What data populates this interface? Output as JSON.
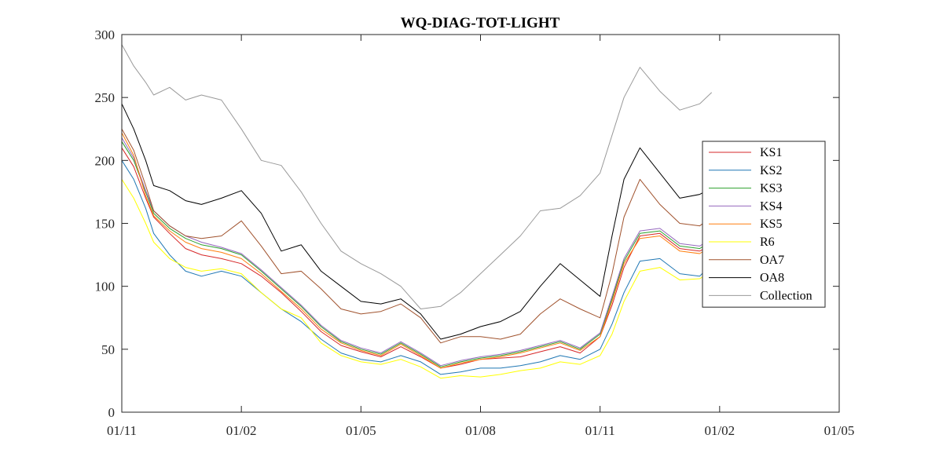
{
  "chart_data": {
    "type": "line",
    "title": "WQ-DIAG-TOT-LIGHT",
    "xlabel": "",
    "ylabel": "",
    "x_tick_labels": [
      "01/11",
      "01/02",
      "01/05",
      "01/08",
      "01/11",
      "01/02",
      "01/05"
    ],
    "x_ticks": [
      0,
      3,
      6,
      9,
      12,
      15,
      18
    ],
    "x_unit": "months since first tick (01/11)",
    "xlim": [
      0,
      18
    ],
    "ylim": [
      0,
      300
    ],
    "y_ticks": [
      0,
      50,
      100,
      150,
      200,
      250,
      300
    ],
    "grid": false,
    "legend_position": "right",
    "series": [
      {
        "name": "KS1",
        "color": "#d62728",
        "x": [
          0,
          0.3,
          0.6,
          0.8,
          1.2,
          1.6,
          2,
          2.5,
          3,
          3.5,
          4,
          4.5,
          5,
          5.5,
          6,
          6.5,
          7,
          7.5,
          8,
          8.5,
          9,
          9.5,
          10,
          10.5,
          11,
          11.5,
          12,
          12.3,
          12.6,
          13,
          13.5,
          14,
          14.5,
          14.8
        ],
        "y": [
          210,
          195,
          170,
          155,
          142,
          130,
          125,
          122,
          118,
          108,
          95,
          80,
          64,
          53,
          48,
          44,
          52,
          44,
          35,
          38,
          42,
          43,
          44,
          48,
          52,
          47,
          60,
          85,
          115,
          140,
          142,
          130,
          128,
          133
        ]
      },
      {
        "name": "KS2",
        "color": "#1f77b4",
        "x": [
          0,
          0.3,
          0.6,
          0.8,
          1.2,
          1.6,
          2,
          2.5,
          3,
          3.5,
          4,
          4.5,
          5,
          5.5,
          6,
          6.5,
          7,
          7.5,
          8,
          8.5,
          9,
          9.5,
          10,
          10.5,
          11,
          11.5,
          12,
          12.3,
          12.6,
          13,
          13.5,
          14,
          14.5,
          14.8
        ],
        "y": [
          200,
          185,
          162,
          142,
          125,
          112,
          108,
          112,
          108,
          95,
          82,
          72,
          58,
          47,
          42,
          40,
          45,
          40,
          30,
          32,
          35,
          35,
          37,
          40,
          45,
          42,
          50,
          70,
          95,
          120,
          122,
          110,
          108,
          118
        ]
      },
      {
        "name": "KS3",
        "color": "#2ca02c",
        "x": [
          0,
          0.3,
          0.6,
          0.8,
          1.2,
          1.6,
          2,
          2.5,
          3,
          3.5,
          4,
          4.5,
          5,
          5.5,
          6,
          6.5,
          7,
          7.5,
          8,
          8.5,
          9,
          9.5,
          10,
          10.5,
          11,
          11.5,
          12,
          12.3,
          12.6,
          13,
          13.5,
          14,
          14.5,
          14.8
        ],
        "y": [
          215,
          200,
          175,
          158,
          146,
          138,
          133,
          130,
          125,
          112,
          98,
          84,
          68,
          56,
          50,
          46,
          55,
          46,
          36,
          40,
          43,
          45,
          48,
          52,
          56,
          50,
          62,
          90,
          120,
          142,
          144,
          132,
          130,
          136
        ]
      },
      {
        "name": "KS4",
        "color": "#9467bd",
        "x": [
          0,
          0.3,
          0.6,
          0.8,
          1.2,
          1.6,
          2,
          2.5,
          3,
          3.5,
          4,
          4.5,
          5,
          5.5,
          6,
          6.5,
          7,
          7.5,
          8,
          8.5,
          9,
          9.5,
          10,
          10.5,
          11,
          11.5,
          12,
          12.3,
          12.6,
          13,
          13.5,
          14,
          14.5,
          14.8
        ],
        "y": [
          218,
          202,
          176,
          160,
          148,
          140,
          135,
          131,
          126,
          113,
          99,
          85,
          69,
          57,
          51,
          47,
          56,
          47,
          37,
          41,
          44,
          46,
          49,
          53,
          57,
          51,
          63,
          92,
          122,
          144,
          146,
          134,
          132,
          138
        ]
      },
      {
        "name": "KS5",
        "color": "#ff7f0e",
        "x": [
          0,
          0.3,
          0.6,
          0.8,
          1.2,
          1.6,
          2,
          2.5,
          3,
          3.5,
          4,
          4.5,
          5,
          5.5,
          6,
          6.5,
          7,
          7.5,
          8,
          8.5,
          9,
          9.5,
          10,
          10.5,
          11,
          11.5,
          12,
          12.3,
          12.6,
          13,
          13.5,
          14,
          14.5,
          14.8
        ],
        "y": [
          222,
          204,
          172,
          156,
          144,
          135,
          130,
          127,
          122,
          110,
          96,
          82,
          66,
          55,
          49,
          45,
          54,
          45,
          35,
          39,
          42,
          44,
          47,
          51,
          55,
          49,
          60,
          88,
          118,
          138,
          140,
          128,
          126,
          132
        ]
      },
      {
        "name": "R6",
        "color": "#ffff00",
        "x": [
          0,
          0.3,
          0.6,
          0.8,
          1.2,
          1.6,
          2,
          2.5,
          3,
          3.5,
          4,
          4.5,
          5,
          5.5,
          6,
          6.5,
          7,
          7.5,
          8,
          8.5,
          9,
          9.5,
          10,
          10.5,
          11,
          11.5,
          12,
          12.3,
          12.6,
          13,
          13.5,
          14,
          14.5,
          14.8
        ],
        "y": [
          185,
          170,
          150,
          135,
          122,
          115,
          112,
          114,
          110,
          95,
          82,
          75,
          55,
          45,
          40,
          38,
          42,
          36,
          27,
          29,
          28,
          30,
          33,
          35,
          40,
          38,
          45,
          62,
          88,
          112,
          115,
          105,
          106,
          112
        ]
      },
      {
        "name": "OA7",
        "color": "#a0522d",
        "x": [
          0,
          0.3,
          0.6,
          0.8,
          1.2,
          1.6,
          2,
          2.5,
          3,
          3.5,
          4,
          4.5,
          5,
          5.5,
          6,
          6.5,
          7,
          7.5,
          8,
          8.5,
          9,
          9.5,
          10,
          10.5,
          11,
          11.5,
          12,
          12.3,
          12.6,
          13,
          13.5,
          14,
          14.5,
          14.8
        ],
        "y": [
          225,
          208,
          180,
          160,
          148,
          140,
          138,
          140,
          152,
          132,
          110,
          112,
          98,
          82,
          78,
          80,
          86,
          75,
          55,
          60,
          60,
          58,
          62,
          78,
          90,
          82,
          75,
          110,
          155,
          185,
          165,
          150,
          148,
          155
        ]
      },
      {
        "name": "OA8",
        "color": "#000000",
        "x": [
          0,
          0.3,
          0.6,
          0.8,
          1.2,
          1.6,
          2,
          2.5,
          3,
          3.5,
          4,
          4.5,
          5,
          5.5,
          6,
          6.5,
          7,
          7.5,
          8,
          8.5,
          9,
          9.5,
          10,
          10.5,
          11,
          11.5,
          12,
          12.3,
          12.6,
          13,
          13.5,
          14,
          14.5,
          14.8
        ],
        "y": [
          245,
          225,
          200,
          180,
          176,
          168,
          165,
          170,
          176,
          158,
          128,
          133,
          112,
          100,
          88,
          86,
          90,
          78,
          58,
          62,
          68,
          72,
          80,
          100,
          118,
          105,
          92,
          140,
          185,
          210,
          190,
          170,
          173,
          178
        ]
      },
      {
        "name": "Collection",
        "color": "#999999",
        "x": [
          0,
          0.3,
          0.6,
          0.8,
          1.2,
          1.6,
          2,
          2.5,
          3,
          3.5,
          4,
          4.5,
          5,
          5.5,
          6,
          6.5,
          7,
          7.5,
          8,
          8.5,
          9,
          9.5,
          10,
          10.5,
          11,
          11.5,
          12,
          12.3,
          12.6,
          13,
          13.5,
          14,
          14.5,
          14.8
        ],
        "y": [
          292,
          275,
          262,
          252,
          258,
          248,
          252,
          248,
          225,
          200,
          196,
          175,
          150,
          128,
          118,
          110,
          100,
          82,
          84,
          95,
          110,
          125,
          140,
          160,
          162,
          172,
          190,
          220,
          250,
          274,
          255,
          240,
          245,
          254
        ]
      }
    ]
  }
}
